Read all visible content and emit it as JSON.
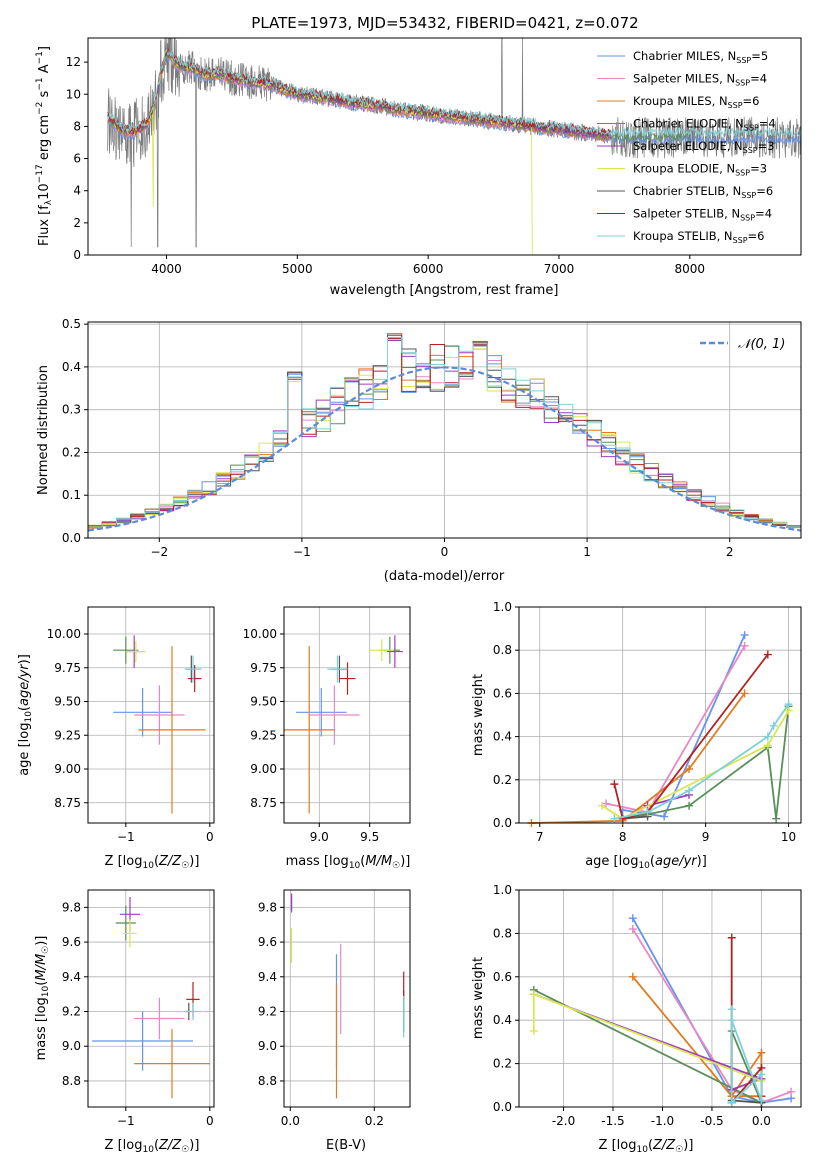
{
  "title": "PLATE=1973, MJD=53432, FIBERID=0421, z=0.072",
  "colors": [
    "#6495ed",
    "#e887c5",
    "#e07b1f",
    "#5a8f5a",
    "#a03cc0",
    "#d9e74f",
    "#555555",
    "#b22222",
    "#80d0d8"
  ],
  "legend": [
    "Chabrier MILES, N_SSP=5",
    "Salpeter MILES, N_SSP=4",
    "Kroupa MILES, N_SSP=6",
    "Chabrier ELODIE, N_SSP=4",
    "Salpeter ELODIE, N_SSP=3",
    "Kroupa ELODIE, N_SSP=3",
    "Chabrier STELIB, N_SSP=6",
    "Salpeter STELIB, N_SSP=4",
    "Kroupa STELIB, N_SSP=6"
  ],
  "hist_legend": "𝒩(0, 1)",
  "chart_data": [
    {
      "id": "spectrum",
      "type": "line",
      "title": "PLATE=1973, MJD=53432, FIBERID=0421, z=0.072",
      "xlabel": "wavelength [Angstrom, rest frame]",
      "ylabel": "Flux [f_λ 10⁻¹⁷ erg cm⁻² s⁻¹ A⁻¹]",
      "xlim": [
        3400,
        8850
      ],
      "ylim": [
        0,
        13.5
      ],
      "xticks": [
        4000,
        5000,
        6000,
        7000,
        8000
      ],
      "yticks": [
        0,
        2,
        4,
        6,
        8,
        10,
        12
      ],
      "model_continuum": {
        "x": [
          3550,
          3650,
          3750,
          3850,
          3900,
          3950,
          4000,
          4050,
          4100,
          4200,
          4300,
          4400,
          4500,
          4600,
          4800,
          5000,
          5200,
          5400,
          5600,
          5800,
          6000,
          6200,
          6400,
          6600,
          6800,
          7000,
          7200,
          7400
        ],
        "y": [
          8.6,
          7.8,
          7.6,
          8.2,
          9.0,
          11.0,
          12.5,
          12.2,
          11.8,
          11.6,
          11.2,
          11.3,
          11.0,
          10.8,
          10.6,
          10.0,
          9.8,
          9.5,
          9.3,
          9.0,
          8.8,
          8.6,
          8.4,
          8.2,
          8.0,
          7.8,
          7.6,
          7.4
        ]
      }
    },
    {
      "id": "residuals",
      "type": "line",
      "xlabel": "(data-model)/error",
      "ylabel": "Normed distribution",
      "xlim": [
        -2.5,
        2.5
      ],
      "ylim": [
        0,
        0.505
      ],
      "xticks": [
        -2,
        -1,
        0,
        1,
        2
      ],
      "yticks": [
        0.0,
        0.1,
        0.2,
        0.3,
        0.4,
        0.5
      ],
      "normal_mean": 0,
      "normal_sigma": 1
    },
    {
      "id": "age-vs-z",
      "type": "scatter",
      "xlabel": "Z [log₁₀(Z/Z☉)]",
      "ylabel": "age  [log₁₀(age/yr)]",
      "xlim": [
        -1.45,
        0.05
      ],
      "ylim": [
        8.6,
        10.2
      ],
      "xticks": [
        -1,
        0
      ],
      "yticks": [
        8.75,
        9.0,
        9.25,
        9.5,
        9.75,
        10.0
      ],
      "points": [
        {
          "x": -0.8,
          "y": 9.42,
          "xerr": 0.35,
          "yerr": 0.18
        },
        {
          "x": -0.6,
          "y": 9.4,
          "xerr": 0.3,
          "yerr": 0.22
        },
        {
          "x": -0.45,
          "y": 9.29,
          "xerr": 0.4,
          "yerr": 0.62
        },
        {
          "x": -1.0,
          "y": 9.88,
          "xerr": 0.15,
          "yerr": 0.1
        },
        {
          "x": -0.9,
          "y": 9.87,
          "xerr": 0.1,
          "yerr": 0.12
        },
        {
          "x": -0.88,
          "y": 9.87,
          "xerr": 0.12,
          "yerr": 0.08
        },
        {
          "x": -0.22,
          "y": 9.74,
          "xerr": 0.05,
          "yerr": 0.1
        },
        {
          "x": -0.18,
          "y": 9.67,
          "xerr": 0.08,
          "yerr": 0.1
        },
        {
          "x": -0.2,
          "y": 9.74,
          "xerr": 0.1,
          "yerr": 0.1
        }
      ]
    },
    {
      "id": "age-vs-mass",
      "type": "scatter",
      "xlabel": "mass [log₁₀(M/M☉)]",
      "ylabel": "",
      "xlim": [
        8.65,
        9.9
      ],
      "ylim": [
        8.6,
        10.2
      ],
      "xticks": [
        9.0,
        9.5
      ],
      "yticks": [
        8.75,
        9.0,
        9.25,
        9.5,
        9.75,
        10.0
      ],
      "points": [
        {
          "x": 9.02,
          "y": 9.42,
          "xerr": 0.25,
          "yerr": 0.18
        },
        {
          "x": 9.15,
          "y": 9.4,
          "xerr": 0.25,
          "yerr": 0.22
        },
        {
          "x": 8.9,
          "y": 9.29,
          "xerr": 0.25,
          "yerr": 0.62
        },
        {
          "x": 9.7,
          "y": 9.88,
          "xerr": 0.1,
          "yerr": 0.1
        },
        {
          "x": 9.75,
          "y": 9.87,
          "xerr": 0.08,
          "yerr": 0.12
        },
        {
          "x": 9.62,
          "y": 9.88,
          "xerr": 0.12,
          "yerr": 0.08
        },
        {
          "x": 9.2,
          "y": 9.74,
          "xerr": 0.08,
          "yerr": 0.1
        },
        {
          "x": 9.28,
          "y": 9.67,
          "xerr": 0.08,
          "yerr": 0.12
        },
        {
          "x": 9.18,
          "y": 9.74,
          "xerr": 0.1,
          "yerr": 0.1
        }
      ]
    },
    {
      "id": "weight-vs-age",
      "type": "line",
      "xlabel": "age  [log₁₀(age/yr)]",
      "ylabel": "mass weight",
      "xlim": [
        6.75,
        10.15
      ],
      "ylim": [
        0,
        1.0
      ],
      "xticks": [
        7,
        8,
        9,
        10
      ],
      "yticks": [
        0.0,
        0.2,
        0.4,
        0.6,
        0.8,
        1.0
      ],
      "series": [
        {
          "x": [
            8.0,
            8.5,
            9.47
          ],
          "y": [
            0.06,
            0.03,
            0.87
          ]
        },
        {
          "x": [
            7.8,
            8.3,
            9.47
          ],
          "y": [
            0.09,
            0.05,
            0.82
          ]
        },
        {
          "x": [
            6.9,
            8.0,
            8.8,
            9.47
          ],
          "y": [
            0.0,
            0.01,
            0.25,
            0.6
          ]
        },
        {
          "x": [
            8.0,
            8.3,
            8.8,
            9.75,
            9.85,
            10.0
          ],
          "y": [
            0.02,
            0.04,
            0.08,
            0.35,
            0.02,
            0.54
          ]
        },
        {
          "x": [
            8.0,
            8.3,
            8.8
          ],
          "y": [
            0.02,
            0.08,
            0.13
          ]
        },
        {
          "x": [
            7.75,
            8.0,
            9.75,
            10.0
          ],
          "y": [
            0.08,
            0.02,
            0.36,
            0.52
          ]
        },
        {
          "x": [
            8.0,
            8.3
          ],
          "y": [
            0.02,
            0.03
          ]
        },
        {
          "x": [
            7.9,
            8.0,
            8.3,
            9.75
          ],
          "y": [
            0.18,
            0.02,
            0.05,
            0.78
          ]
        },
        {
          "x": [
            7.9,
            8.3,
            8.8,
            9.75,
            9.82,
            10.0
          ],
          "y": [
            0.02,
            0.05,
            0.15,
            0.4,
            0.45,
            0.55
          ]
        }
      ]
    },
    {
      "id": "mass-vs-z",
      "type": "scatter",
      "xlabel": "Z [log₁₀(Z/Z☉)]",
      "ylabel": "mass [log₁₀(M/M☉)]",
      "xlim": [
        -1.45,
        0.05
      ],
      "ylim": [
        8.65,
        9.9
      ],
      "xticks": [
        -1,
        0
      ],
      "yticks": [
        8.8,
        9.0,
        9.2,
        9.4,
        9.6,
        9.8
      ],
      "points": [
        {
          "x": -0.8,
          "y": 9.03,
          "xerr": 0.6,
          "yerr": 0.17
        },
        {
          "x": -0.6,
          "y": 9.16,
          "xerr": 0.3,
          "yerr": 0.12
        },
        {
          "x": -0.45,
          "y": 8.9,
          "xerr": 0.45,
          "yerr": 0.2
        },
        {
          "x": -1.0,
          "y": 9.71,
          "xerr": 0.12,
          "yerr": 0.1
        },
        {
          "x": -0.95,
          "y": 9.76,
          "xerr": 0.12,
          "yerr": 0.1
        },
        {
          "x": -0.95,
          "y": 9.65,
          "xerr": 0.08,
          "yerr": 0.08
        },
        {
          "x": -0.25,
          "y": 9.2,
          "xerr": 0.05,
          "yerr": 0.05
        },
        {
          "x": -0.2,
          "y": 9.27,
          "xerr": 0.08,
          "yerr": 0.1
        },
        {
          "x": -0.2,
          "y": 9.2,
          "xerr": 0.1,
          "yerr": 0.05
        }
      ]
    },
    {
      "id": "mass-vs-ebv",
      "type": "scatter",
      "xlabel": "E(B-V)",
      "ylabel": "",
      "xlim": [
        -0.015,
        0.285
      ],
      "ylim": [
        8.65,
        9.9
      ],
      "xticks": [
        0.0,
        0.2
      ],
      "yticks": [
        8.8,
        9.0,
        9.2,
        9.4,
        9.6,
        9.8
      ],
      "points": [
        {
          "x": 0.11,
          "y": 9.2,
          "xerr": 0,
          "yerr": 0.33
        },
        {
          "x": 0.12,
          "y": 9.33,
          "xerr": 0,
          "yerr": 0.26
        },
        {
          "x": 0.11,
          "y": 9.03,
          "xerr": 0,
          "yerr": 0.33
        },
        {
          "x": 0.003,
          "y": 9.82,
          "xerr": 0,
          "yerr": 0.05
        },
        {
          "x": 0.003,
          "y": 9.83,
          "xerr": 0,
          "yerr": 0.05
        },
        {
          "x": 0.003,
          "y": 9.58,
          "xerr": 0,
          "yerr": 0.1
        },
        {
          "x": 0.27,
          "y": 9.2,
          "xerr": 0,
          "yerr": 0.12
        },
        {
          "x": 0.27,
          "y": 9.35,
          "xerr": 0,
          "yerr": 0.08
        },
        {
          "x": 0.27,
          "y": 9.17,
          "xerr": 0,
          "yerr": 0.12
        }
      ]
    },
    {
      "id": "weight-vs-z",
      "type": "line",
      "xlabel": "Z [log₁₀(Z/Z☉)]",
      "ylabel": "mass weight",
      "xlim": [
        -2.45,
        0.4
      ],
      "ylim": [
        0,
        1.0
      ],
      "xticks": [
        -2.0,
        -1.5,
        -1.0,
        -0.5,
        0.0
      ],
      "yticks": [
        0.0,
        0.2,
        0.4,
        0.6,
        0.8,
        1.0
      ],
      "series": [
        {
          "x": [
            -1.3,
            -0.3,
            0.0,
            0.3
          ],
          "y": [
            0.87,
            0.05,
            0.02,
            0.04
          ]
        },
        {
          "x": [
            -1.3,
            -0.3,
            0.0,
            0.3
          ],
          "y": [
            0.82,
            0.08,
            0.02,
            0.07
          ]
        },
        {
          "x": [
            -1.3,
            -0.3,
            0.0,
            0.0,
            -0.3
          ],
          "y": [
            0.6,
            0.05,
            0.25,
            0.05,
            0.05
          ]
        },
        {
          "x": [
            -2.3,
            0.0,
            -0.3,
            -0.3
          ],
          "y": [
            0.54,
            0.02,
            0.35,
            0.02
          ]
        },
        {
          "x": [
            -2.3,
            0.0,
            -0.3
          ],
          "y": [
            0.52,
            0.13,
            0.08
          ]
        },
        {
          "x": [
            -2.3,
            -2.3,
            0.0
          ],
          "y": [
            0.35,
            0.52,
            0.12
          ]
        },
        {
          "x": [
            -0.3,
            0.0
          ],
          "y": [
            0.03,
            0.02
          ]
        },
        {
          "x": [
            -0.3,
            -0.3,
            0.0,
            0.0
          ],
          "y": [
            0.78,
            0.02,
            0.18,
            0.05
          ]
        },
        {
          "x": [
            -0.3,
            -0.3,
            0.0,
            0.0,
            -0.3
          ],
          "y": [
            0.45,
            0.02,
            0.15,
            0.03,
            0.4
          ]
        }
      ]
    }
  ]
}
